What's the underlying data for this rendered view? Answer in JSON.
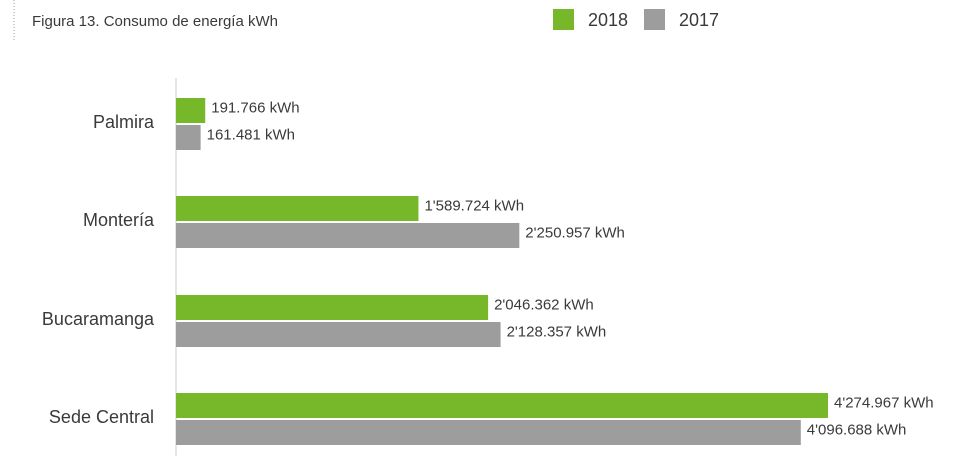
{
  "chart_data": {
    "type": "bar",
    "orientation": "horizontal",
    "title": "Figura 13. Consumo de energía kWh",
    "categories": [
      "Palmira",
      "Montería",
      "Bucaramanga",
      "Sede Central"
    ],
    "series": [
      {
        "name": "2018",
        "color": "#76b82a",
        "values": [
          191766,
          1589724,
          2046362,
          4274967
        ],
        "value_labels": [
          "191.766 kWh",
          "1'589.724 kWh",
          "2'046.362 kWh",
          "4'274.967 kWh"
        ]
      },
      {
        "name": "2017",
        "color": "#9d9d9d",
        "values": [
          161481,
          2250957,
          2128357,
          4096688
        ],
        "value_labels": [
          "161.481 kWh",
          "2'250.957 kWh",
          "2'128.357 kWh",
          "4'096.688 kWh"
        ]
      }
    ]
  }
}
